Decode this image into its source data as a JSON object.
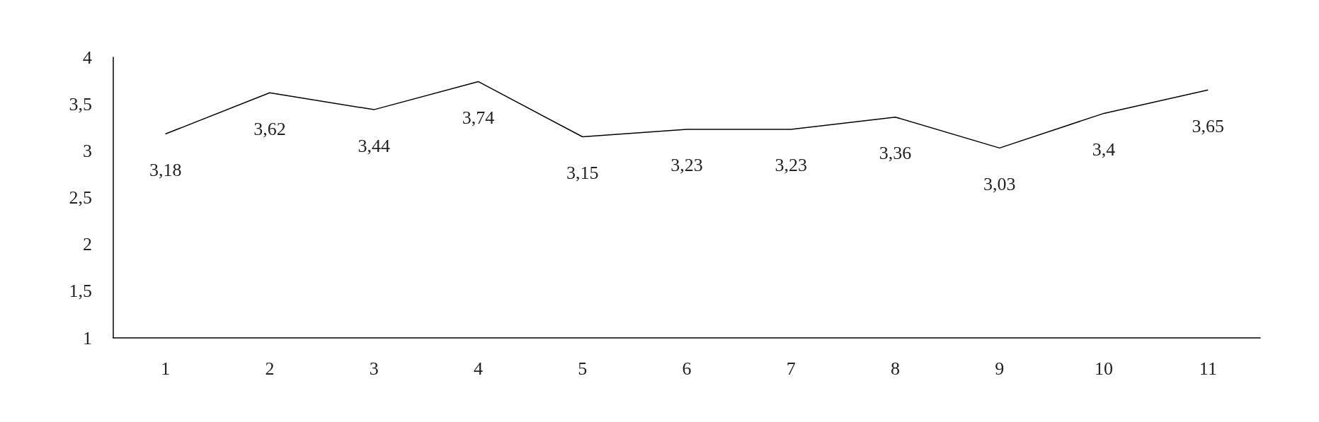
{
  "chart_data": {
    "type": "line",
    "categories": [
      "1",
      "2",
      "3",
      "4",
      "5",
      "6",
      "7",
      "8",
      "9",
      "10",
      "11"
    ],
    "series": [
      {
        "color": "#000000",
        "values": [
          3.18,
          3.62,
          3.44,
          3.74,
          3.15,
          3.23,
          3.23,
          3.36,
          3.03,
          3.4,
          3.65
        ],
        "value_labels": [
          "3,18",
          "3,62",
          "3,44",
          "3,74",
          "3,15",
          "3,23",
          "3,23",
          "3,36",
          "3,03",
          "3,4",
          "3,65"
        ]
      }
    ],
    "ylim": [
      1,
      4
    ],
    "yticks": [
      1,
      {
        "value": 1.5,
        "label": "1,5"
      },
      2,
      {
        "value": 2.5,
        "label": "2,5"
      },
      3,
      {
        "value": 3.5,
        "label": "3,5"
      },
      4
    ],
    "grid": false,
    "marker": "none",
    "line_style": "solid"
  }
}
